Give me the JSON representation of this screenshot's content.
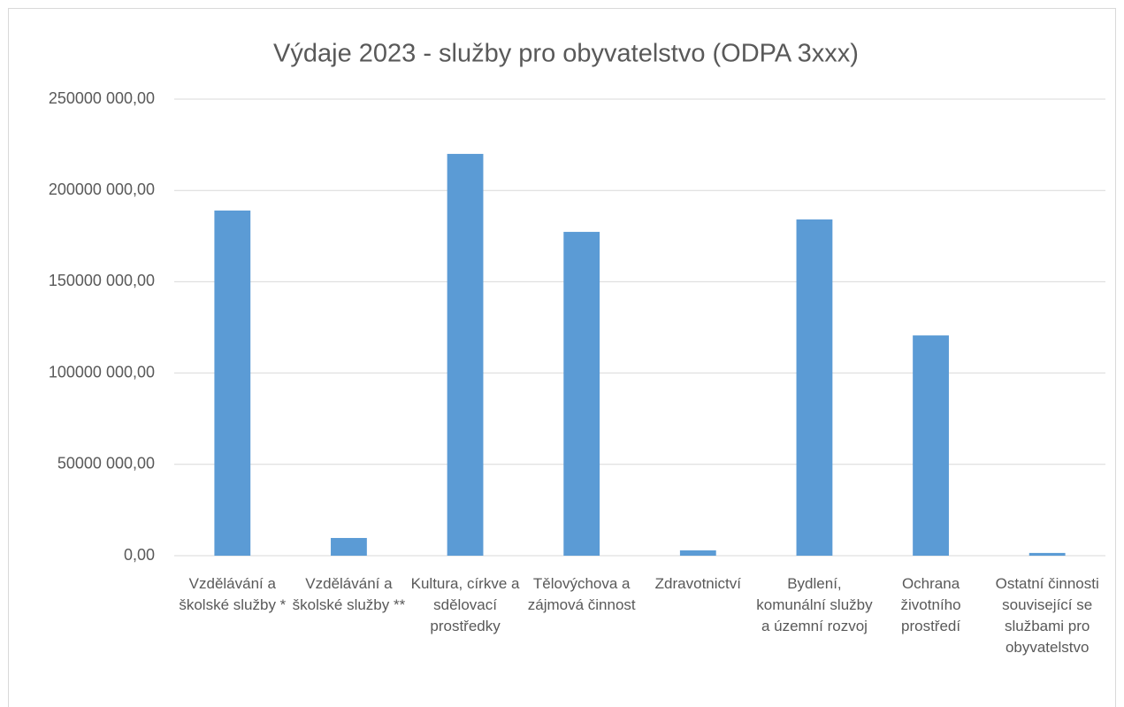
{
  "chart_data": {
    "type": "bar",
    "title": "Výdaje 2023 - služby pro obyvatelstvo (ODPA 3xxx)",
    "categories": [
      "Vzdělávání a školské služby *",
      "Vzdělávání a školské služby **",
      "Kultura, církve a sdělovací prostředky",
      "Tělovýchova a zájmová činnost",
      "Zdravotnictví",
      "Bydlení, komunální služby a územní rozvoj",
      "Ochrana životního prostředí",
      "Ostatní činnosti související se službami pro obyvatelstvo"
    ],
    "values": [
      189000000,
      9700000,
      220000000,
      177300000,
      2900000,
      184100000,
      120600000,
      1500000
    ],
    "color": "#5b9bd5",
    "ylim": [
      0,
      250000000
    ],
    "yticks": [
      {
        "value": 0,
        "label": "0,00"
      },
      {
        "value": 50000000,
        "label": "50000 000,00"
      },
      {
        "value": 100000000,
        "label": "100000 000,00"
      },
      {
        "value": 150000000,
        "label": "150000 000,00"
      },
      {
        "value": 200000000,
        "label": "200000 000,00"
      },
      {
        "value": 250000000,
        "label": "250000 000,00"
      }
    ],
    "grid": true
  }
}
